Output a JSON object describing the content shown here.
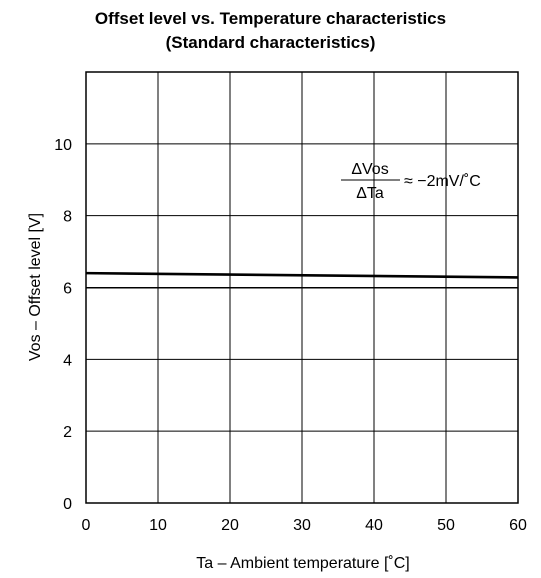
{
  "chart_data": {
    "type": "line",
    "title": "Offset level vs. Temperature characteristics",
    "subtitle": "(Standard characteristics)",
    "xlabel": "Ta – Ambient temperature [˚C]",
    "ylabel": "Vos – Offset level [V]",
    "xlim": [
      0,
      60
    ],
    "ylim": [
      0,
      12
    ],
    "x_ticks": [
      0,
      10,
      20,
      30,
      40,
      50,
      60
    ],
    "y_ticks": [
      0,
      2,
      4,
      6,
      8,
      10
    ],
    "grid": true,
    "reference_line": {
      "y": 6
    },
    "series": [
      {
        "x": [
          0,
          60
        ],
        "y": [
          6.4,
          6.28
        ]
      }
    ],
    "annotation": {
      "numerator": "ΔVos",
      "denominator": "ΔTa",
      "value": "≈ −2mV/˚C"
    }
  }
}
